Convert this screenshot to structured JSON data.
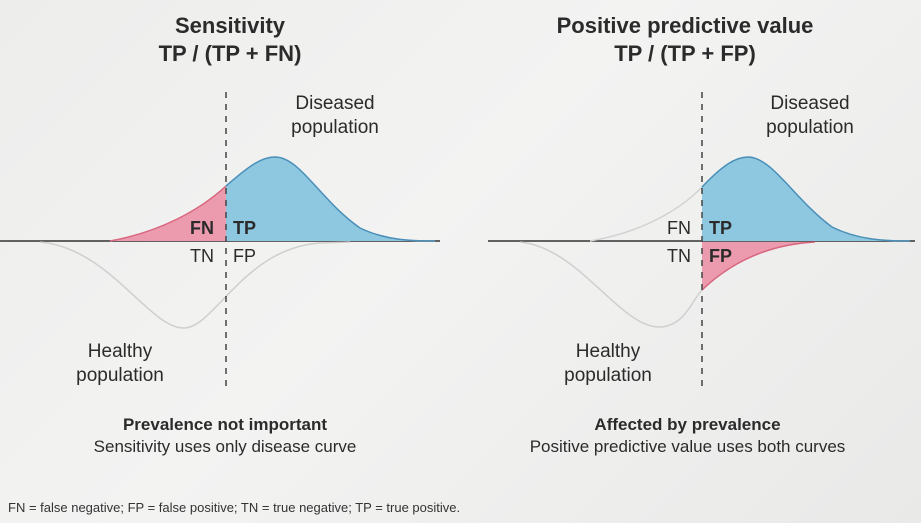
{
  "left_panel": {
    "title_line1": "Sensitivity",
    "title_line2": "TP / (TP + FN)",
    "diseased_label_1": "Diseased",
    "diseased_label_2": "population",
    "healthy_label_1": "Healthy",
    "healthy_label_2": "population",
    "fn": "FN",
    "tp": "TP",
    "tn": "TN",
    "fp": "FP",
    "caption_bold": "Prevalence not important",
    "caption_text": "Sensitivity uses only disease curve"
  },
  "right_panel": {
    "title_line1": "Positive predictive value",
    "title_line2": "TP / (TP + FP)",
    "diseased_label_1": "Diseased",
    "diseased_label_2": "population",
    "healthy_label_1": "Healthy",
    "healthy_label_2": "population",
    "fn": "FN",
    "tp": "TP",
    "tn": "TN",
    "fp": "FP",
    "caption_bold": "Affected by prevalence",
    "caption_text": "Positive predictive value uses both curves"
  },
  "footnote": "FN = false negative; FP = false positive; TN = true negative; TP = true positive.",
  "colors": {
    "true_positive_fill": "#8ec7e0",
    "false_fill": "#ec9aae",
    "curve_stroke_blue": "#4a8fb8",
    "curve_stroke_red": "#d8667f",
    "healthy_curve": "#cfcfcf",
    "axis": "#333333"
  }
}
